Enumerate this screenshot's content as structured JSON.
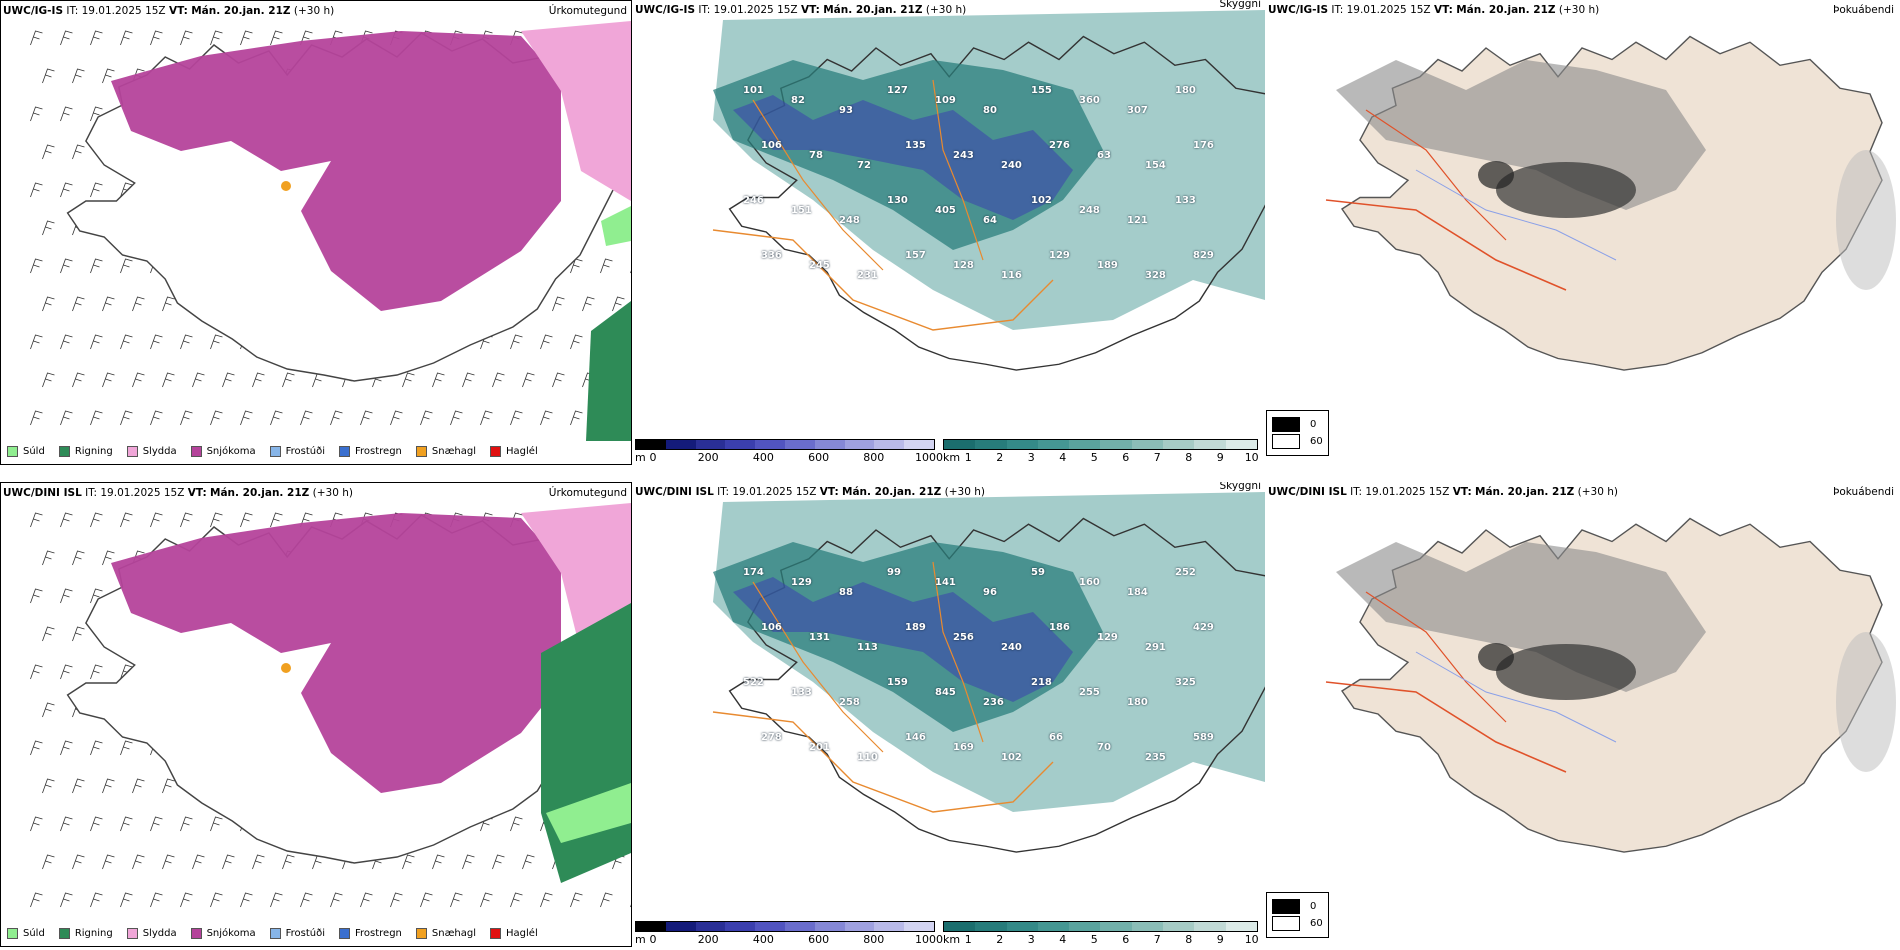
{
  "rows": [
    {
      "model": "UWC/IG-IS",
      "it_label": "IT:",
      "it_value": "19.01.2025 15Z",
      "vt_label": "VT:",
      "vt_value": "Mán. 20.jan. 21Z",
      "lead": "(+30 h)",
      "panels": {
        "precip": "Úrkomutegund",
        "cloud": "Skyggni",
        "fog": "Þokuábendi"
      },
      "cloud_labels": [
        "101",
        "82",
        "93",
        "127",
        "109",
        "80",
        "155",
        "360",
        "307",
        "180",
        "106",
        "78",
        "72",
        "135",
        "243",
        "240",
        "276",
        "63",
        "154",
        "176",
        "246",
        "151",
        "248",
        "130",
        "405",
        "64",
        "102",
        "248",
        "121",
        "133",
        "336",
        "245",
        "231",
        "157",
        "128",
        "116",
        "129",
        "189",
        "328",
        "829"
      ]
    },
    {
      "model": "UWC/DINI ISL",
      "it_label": "IT:",
      "it_value": "19.01.2025 15Z",
      "vt_label": "VT:",
      "vt_value": "Mán. 20.jan. 21Z",
      "lead": "(+30 h)",
      "panels": {
        "precip": "Úrkomutegund",
        "cloud": "Skyggni",
        "fog": "Þokuábendi"
      },
      "cloud_labels": [
        "174",
        "129",
        "88",
        "99",
        "141",
        "96",
        "59",
        "160",
        "184",
        "252",
        "106",
        "131",
        "113",
        "189",
        "256",
        "240",
        "186",
        "129",
        "291",
        "429",
        "522",
        "133",
        "258",
        "159",
        "845",
        "236",
        "218",
        "255",
        "180",
        "325",
        "278",
        "201",
        "110",
        "146",
        "169",
        "102",
        "66",
        "70",
        "235",
        "589"
      ]
    }
  ],
  "legend_precip": [
    {
      "label": "Súld",
      "color": "#90ee90"
    },
    {
      "label": "Rigning",
      "color": "#2e8b57"
    },
    {
      "label": "Slydda",
      "color": "#f0a6d8"
    },
    {
      "label": "Snjókoma",
      "color": "#b5439b"
    },
    {
      "label": "Frostúði",
      "color": "#87b5e8"
    },
    {
      "label": "Frostregn",
      "color": "#3a6fcf"
    },
    {
      "label": "Snæhagl",
      "color": "#f0a020"
    },
    {
      "label": "Haglél",
      "color": "#e01010"
    }
  ],
  "cbar_height": {
    "unit": "m",
    "ticks": [
      "0",
      "200",
      "400",
      "600",
      "800",
      "1000"
    ],
    "colors": [
      "#000",
      "#141b7a",
      "#2a2f96",
      "#3b3fae",
      "#5154c0",
      "#6a6dcc",
      "#8588d6",
      "#9fa1e0",
      "#b9bae9",
      "#d3d4f2"
    ]
  },
  "cbar_km": {
    "unit": "km",
    "ticks": [
      "1",
      "2",
      "3",
      "4",
      "5",
      "6",
      "7",
      "8",
      "9",
      "10"
    ],
    "colors": [
      "#1b6e6e",
      "#277c7b",
      "#348a88",
      "#459793",
      "#5aa39e",
      "#72b0aa",
      "#8bbdb7",
      "#a6cbc5",
      "#c1dad6",
      "#dcebe8"
    ]
  },
  "fog_legend": [
    {
      "label": "0",
      "color": "#000000"
    },
    {
      "label": "60",
      "color": "#ffffff"
    }
  ]
}
